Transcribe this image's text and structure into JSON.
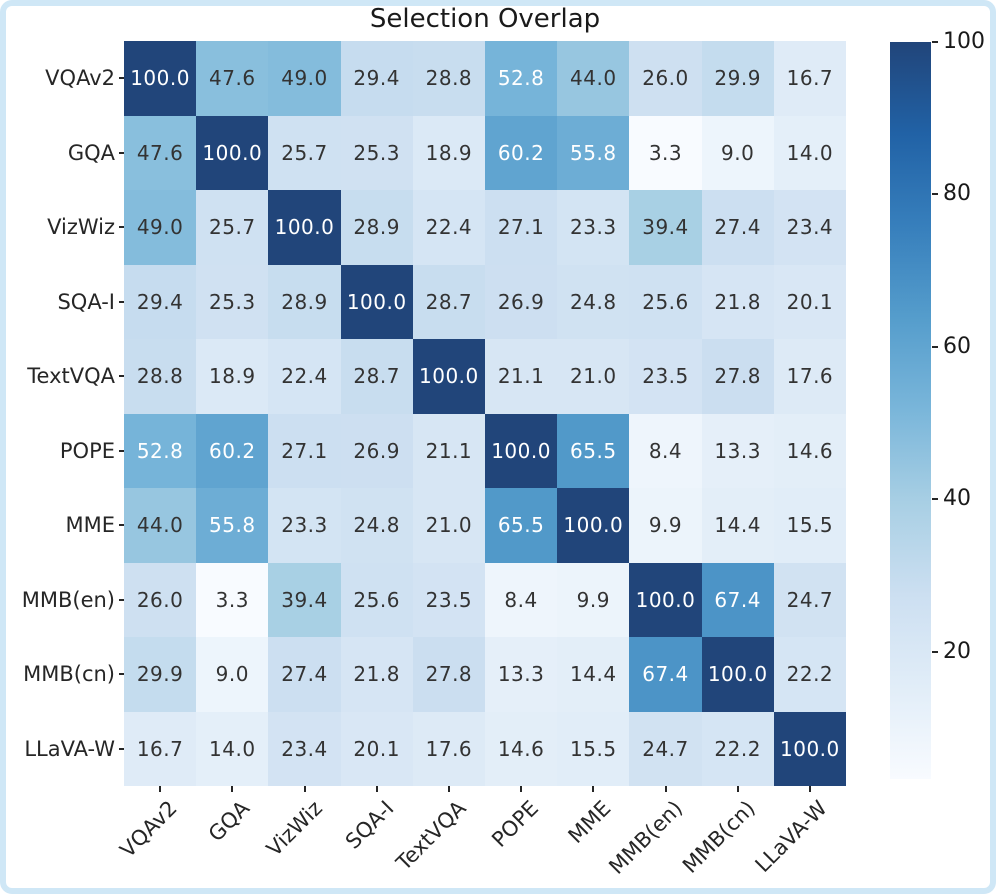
{
  "title": "Selection Overlap",
  "colors": {
    "frame_border": "#cfe7f6",
    "background": "#ffffff",
    "annotation_dark": "#333333",
    "annotation_light": "#ffffff",
    "axis_text": "#262626",
    "title_text": "#1a1a1a",
    "colormap_low": "#f7fbff",
    "colormap_high": "#08306b"
  },
  "chart_data": {
    "type": "heatmap",
    "title": "Selection Overlap",
    "colormap": "Blues",
    "vmin": 3.3,
    "vmax": 100.0,
    "annotations": true,
    "value_format": "1-decimal",
    "legend_position": "right",
    "colorbar_ticks": [
      100,
      80,
      60,
      40,
      20
    ],
    "categories": [
      "VQAv2",
      "GQA",
      "VizWiz",
      "SQA-I",
      "TextVQA",
      "POPE",
      "MME",
      "MMB(en)",
      "MMB(cn)",
      "LLaVA-W"
    ],
    "matrix": [
      [
        100.0,
        47.6,
        49.0,
        29.4,
        28.8,
        52.8,
        44.0,
        26.0,
        29.9,
        16.7
      ],
      [
        47.6,
        100.0,
        25.7,
        25.3,
        18.9,
        60.2,
        55.8,
        3.3,
        9.0,
        14.0
      ],
      [
        49.0,
        25.7,
        100.0,
        28.9,
        22.4,
        27.1,
        23.3,
        39.4,
        27.4,
        23.4
      ],
      [
        29.4,
        25.3,
        28.9,
        100.0,
        28.7,
        26.9,
        24.8,
        25.6,
        21.8,
        20.1
      ],
      [
        28.8,
        18.9,
        22.4,
        28.7,
        100.0,
        21.1,
        21.0,
        23.5,
        27.8,
        17.6
      ],
      [
        52.8,
        60.2,
        27.1,
        26.9,
        21.1,
        100.0,
        65.5,
        8.4,
        13.3,
        14.6
      ],
      [
        44.0,
        55.8,
        23.3,
        24.8,
        21.0,
        65.5,
        100.0,
        9.9,
        14.4,
        15.5
      ],
      [
        26.0,
        3.3,
        39.4,
        25.6,
        23.5,
        8.4,
        9.9,
        100.0,
        67.4,
        24.7
      ],
      [
        29.9,
        9.0,
        27.4,
        21.8,
        27.8,
        13.3,
        14.4,
        67.4,
        100.0,
        22.2
      ],
      [
        16.7,
        14.0,
        23.4,
        20.1,
        17.6,
        14.6,
        15.5,
        24.7,
        22.2,
        100.0
      ]
    ]
  }
}
